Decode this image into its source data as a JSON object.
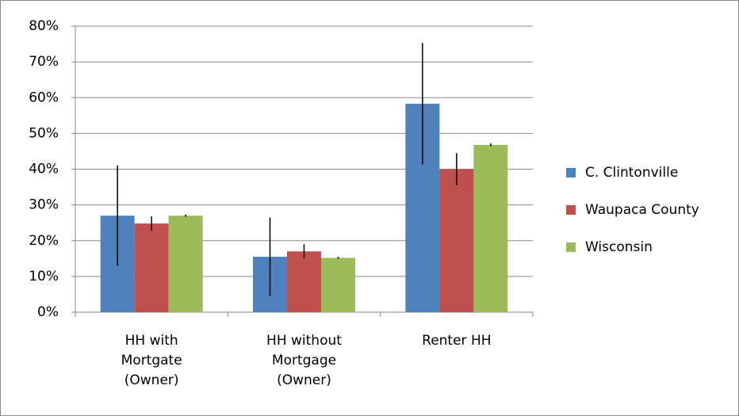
{
  "chart_data": {
    "type": "bar",
    "categories": [
      "HH with Mortgate (Owner)",
      "HH without Mortgage (Owner)",
      "Renter HH"
    ],
    "series": [
      {
        "name": "C. Clintonville",
        "color": "#4f81bd",
        "values": [
          27,
          15.5,
          58.3
        ],
        "errors": [
          14,
          11,
          17
        ]
      },
      {
        "name": "Waupaca County",
        "color": "#c0504d",
        "values": [
          24.8,
          17,
          40
        ],
        "errors": [
          2,
          2,
          4.5
        ]
      },
      {
        "name": "Wisconsin",
        "color": "#9bbb59",
        "values": [
          27,
          15.2,
          46.8
        ],
        "errors": [
          0.3,
          0.3,
          0.4
        ]
      }
    ],
    "ylim": [
      0,
      80
    ],
    "yticks": [
      {
        "value": 0,
        "label": "0%"
      },
      {
        "value": 10,
        "label": "10%"
      },
      {
        "value": 20,
        "label": "20%"
      },
      {
        "value": 30,
        "label": "30%"
      },
      {
        "value": 40,
        "label": "40%"
      },
      {
        "value": 50,
        "label": "50%"
      },
      {
        "value": 60,
        "label": "60%"
      },
      {
        "value": 70,
        "label": "70%"
      },
      {
        "value": 80,
        "label": "80%"
      }
    ],
    "grid": true,
    "legend": "right"
  }
}
